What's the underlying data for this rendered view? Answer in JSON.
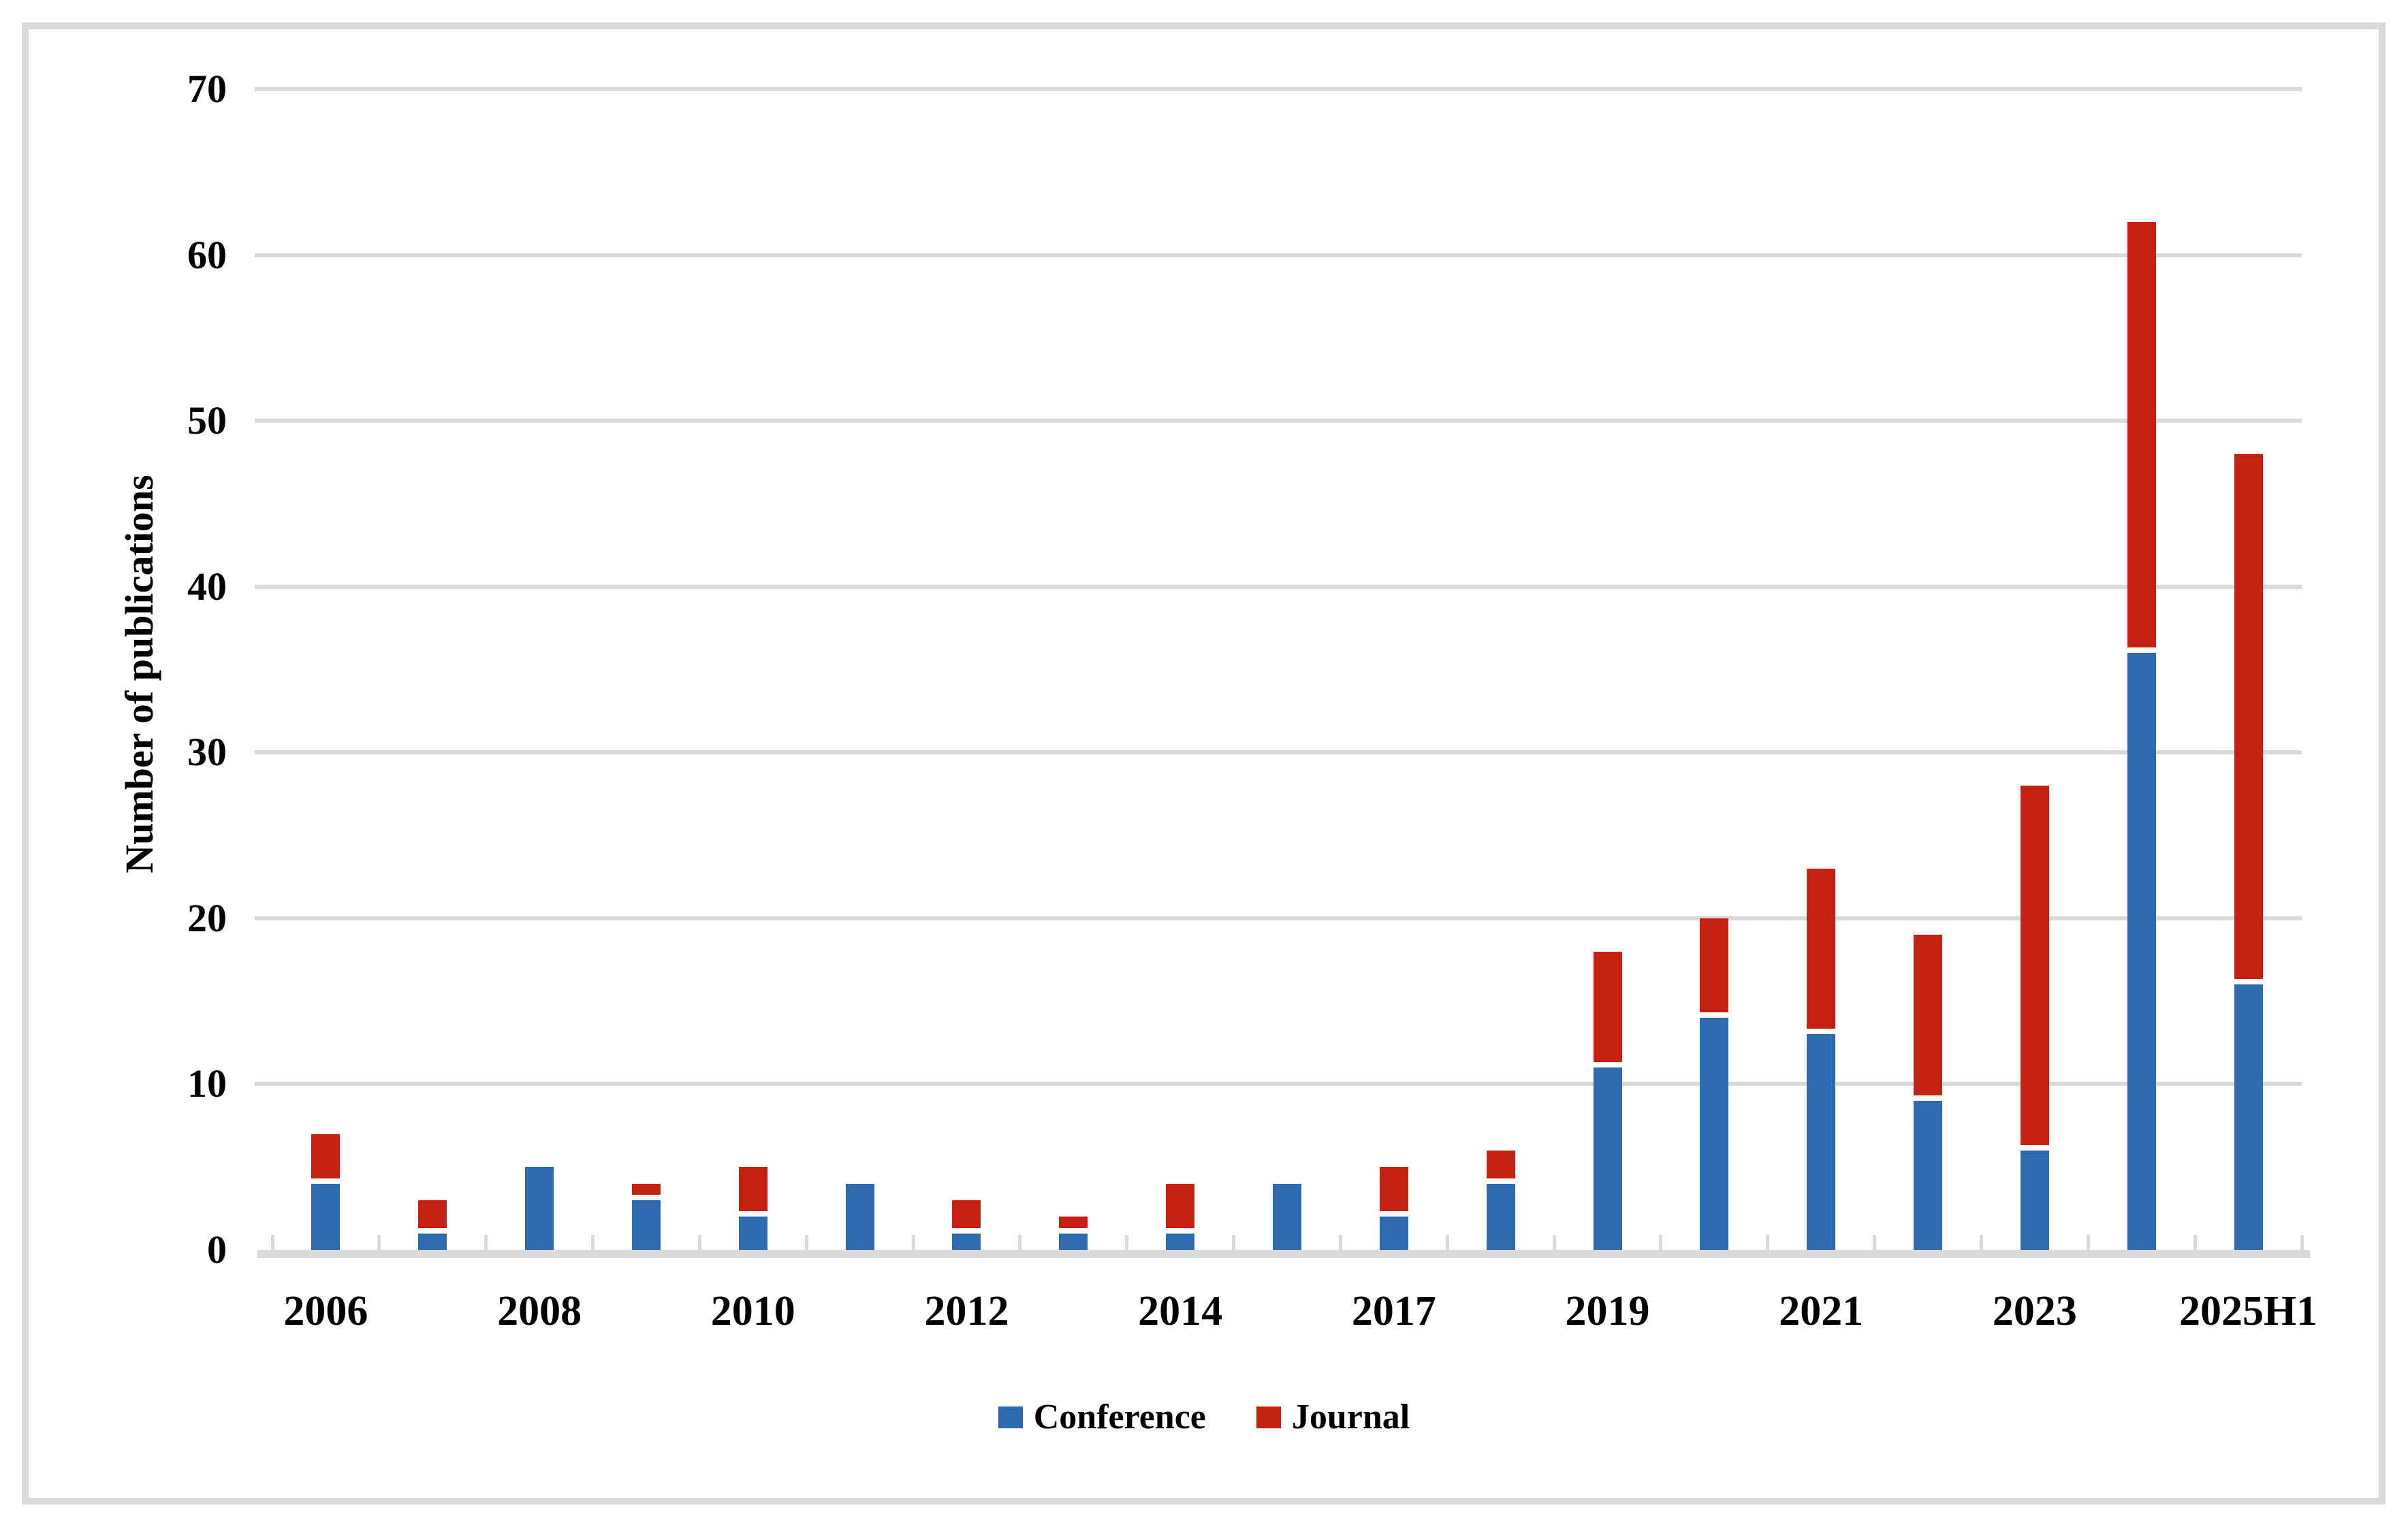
{
  "figure": {
    "background_color": "#FFFFFF",
    "frame_color": "#D9D9D9",
    "gridline_color": "#D9D9D9",
    "axis_line_color": "#D9D9D9",
    "text_color": "#000000"
  },
  "chart_data": {
    "type": "bar",
    "stacked": true,
    "title": "",
    "xlabel": "",
    "ylabel": "Number of publications",
    "ylim": [
      0,
      70
    ],
    "y_ticks": [
      0,
      10,
      20,
      30,
      40,
      50,
      60,
      70
    ],
    "grid": "horizontal",
    "legend_position": "bottom-center",
    "x_tick_labels": [
      "2006",
      "",
      "2008",
      "",
      "2010",
      "",
      "2012",
      "",
      "2014",
      "",
      "2017",
      "",
      "2019",
      "",
      "2021",
      "",
      "2023",
      "",
      "2025H1"
    ],
    "series": [
      {
        "name": "Conference",
        "color": "#2D6AB1",
        "values": [
          4,
          1,
          5,
          3,
          2,
          4,
          1,
          1,
          1,
          4,
          2,
          4,
          11,
          14,
          13,
          9,
          6,
          36,
          16
        ]
      },
      {
        "name": "Journal",
        "color": "#C52112",
        "values": [
          3,
          2,
          0,
          1,
          3,
          0,
          2,
          1,
          3,
          0,
          3,
          2,
          7,
          6,
          10,
          10,
          22,
          26,
          32
        ]
      }
    ]
  },
  "legend": {
    "items": [
      {
        "label": "Conference",
        "color": "#2D6AB1"
      },
      {
        "label": "Journal",
        "color": "#C52112"
      }
    ]
  }
}
